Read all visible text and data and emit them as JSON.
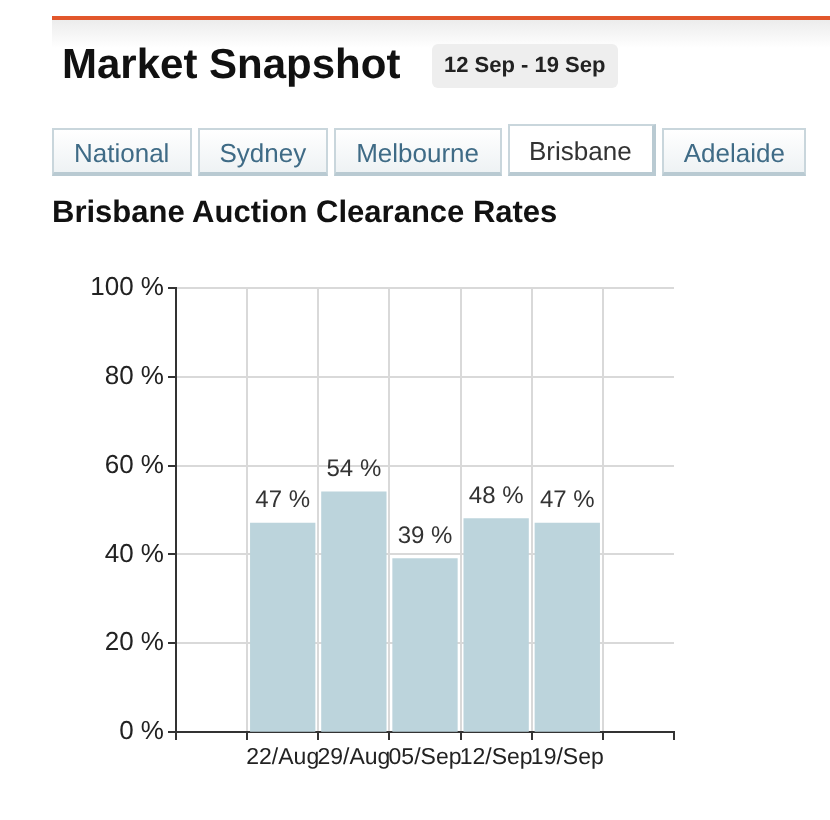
{
  "chart_data": {
    "type": "bar",
    "title": "Brisbane Auction Clearance Rates",
    "annotations": [
      "Market Snapshot",
      "12 Sep - 19 Sep",
      "National",
      "Sydney",
      "Melbourne",
      "Brisbane",
      "Adelaide"
    ],
    "categories": [
      "22/Aug",
      "29/Aug",
      "05/Sep",
      "12/Sep",
      "19/Sep"
    ],
    "values": [
      47,
      54,
      39,
      48,
      47
    ],
    "value_labels": [
      "47 %",
      "54 %",
      "39 %",
      "48 %",
      "47 %"
    ],
    "color": "#bcd4dc",
    "ylim": [
      0,
      100
    ],
    "yticks": [
      {
        "value": 0,
        "label": "0 %"
      },
      {
        "value": 20,
        "label": "20 %"
      },
      {
        "value": 40,
        "label": "40 %"
      },
      {
        "value": 60,
        "label": "60 %"
      },
      {
        "value": 80,
        "label": "80 %"
      },
      {
        "value": 100,
        "label": "100 %"
      }
    ],
    "grid": true
  }
}
